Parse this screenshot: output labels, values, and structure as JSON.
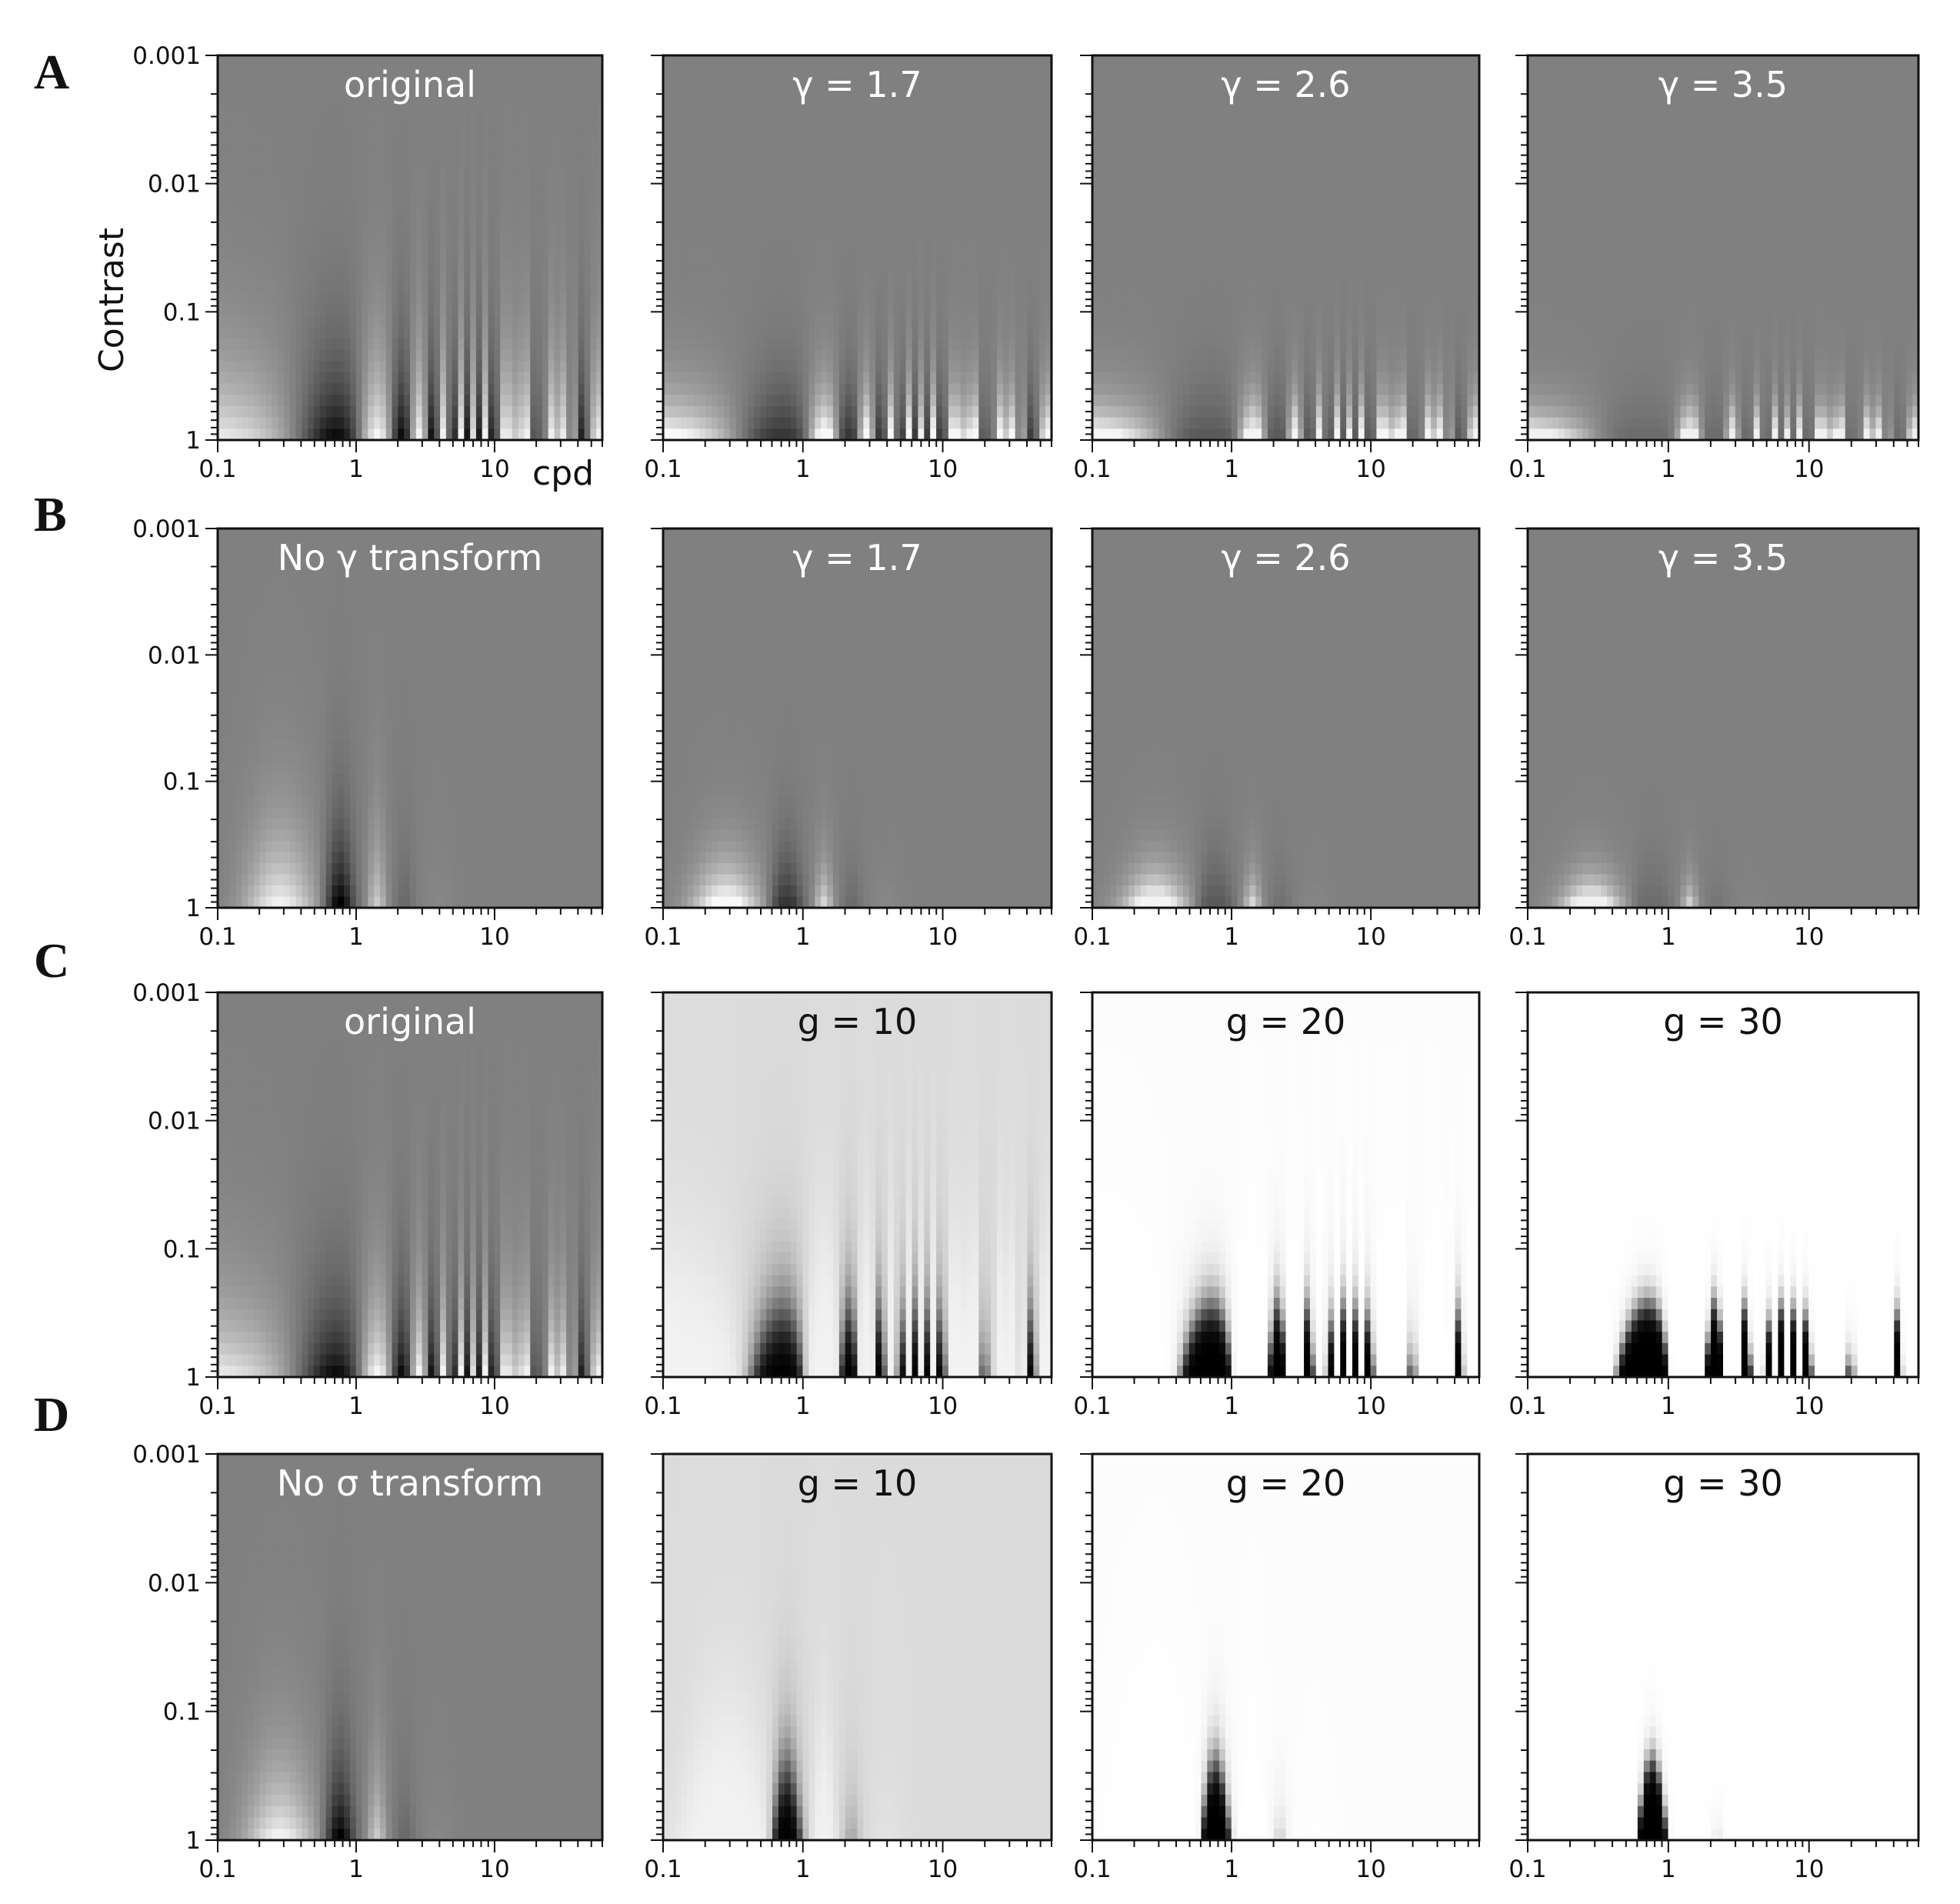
{
  "figure": {
    "row_letters": [
      "A",
      "B",
      "C",
      "D"
    ],
    "y_axis_label": "Contrast",
    "x_axis_label": "cpd"
  },
  "chart_data": [
    {
      "row": "A",
      "type": "heatmap",
      "title": "original",
      "stimulus": "grating",
      "gamma": null,
      "gain": null,
      "xscale": "log",
      "yscale": "log",
      "xlim": [
        0.1,
        60
      ],
      "ylim": [
        0.001,
        1
      ],
      "xticks": [
        "0.1",
        "1",
        "10"
      ],
      "yticks": [
        "0.001",
        "0.01",
        "0.1",
        "1"
      ],
      "xlabel": "cpd",
      "ylabel": "Contrast"
    },
    {
      "row": "A",
      "type": "heatmap",
      "title": "γ = 1.7",
      "stimulus": "grating",
      "gamma": 1.7,
      "gain": null,
      "xscale": "log",
      "yscale": "log",
      "xlim": [
        0.1,
        60
      ],
      "ylim": [
        0.001,
        1
      ],
      "xticks": [
        "0.1",
        "1",
        "10"
      ],
      "yticks": [],
      "xlabel": "",
      "ylabel": ""
    },
    {
      "row": "A",
      "type": "heatmap",
      "title": "γ = 2.6",
      "stimulus": "grating",
      "gamma": 2.6,
      "gain": null,
      "xscale": "log",
      "yscale": "log",
      "xlim": [
        0.1,
        60
      ],
      "ylim": [
        0.001,
        1
      ],
      "xticks": [
        "0.1",
        "1",
        "10"
      ],
      "yticks": [],
      "xlabel": "",
      "ylabel": ""
    },
    {
      "row": "A",
      "type": "heatmap",
      "title": "γ = 3.5",
      "stimulus": "grating",
      "gamma": 3.5,
      "gain": null,
      "xscale": "log",
      "yscale": "log",
      "xlim": [
        0.1,
        60
      ],
      "ylim": [
        0.001,
        1
      ],
      "xticks": [
        "0.1",
        "1",
        "10"
      ],
      "yticks": [],
      "xlabel": "",
      "ylabel": ""
    },
    {
      "row": "B",
      "type": "heatmap",
      "title": "No γ  transform",
      "stimulus": "blurred",
      "gamma": null,
      "gain": null,
      "xscale": "log",
      "yscale": "log",
      "xlim": [
        0.1,
        60
      ],
      "ylim": [
        0.001,
        1
      ],
      "xticks": [
        "0.1",
        "1",
        "10"
      ],
      "yticks": [
        "0.001",
        "0.01",
        "0.1",
        "1"
      ],
      "xlabel": "",
      "ylabel": ""
    },
    {
      "row": "B",
      "type": "heatmap",
      "title": "γ = 1.7",
      "stimulus": "blurred",
      "gamma": 1.7,
      "gain": null,
      "xscale": "log",
      "yscale": "log",
      "xlim": [
        0.1,
        60
      ],
      "ylim": [
        0.001,
        1
      ],
      "xticks": [
        "0.1",
        "1",
        "10"
      ],
      "yticks": [],
      "xlabel": "",
      "ylabel": ""
    },
    {
      "row": "B",
      "type": "heatmap",
      "title": "γ = 2.6",
      "stimulus": "blurred",
      "gamma": 2.6,
      "gain": null,
      "xscale": "log",
      "yscale": "log",
      "xlim": [
        0.1,
        60
      ],
      "ylim": [
        0.001,
        1
      ],
      "xticks": [
        "0.1",
        "1",
        "10"
      ],
      "yticks": [],
      "xlabel": "",
      "ylabel": ""
    },
    {
      "row": "B",
      "type": "heatmap",
      "title": "γ = 3.5",
      "stimulus": "blurred",
      "gamma": 3.5,
      "gain": null,
      "xscale": "log",
      "yscale": "log",
      "xlim": [
        0.1,
        60
      ],
      "ylim": [
        0.001,
        1
      ],
      "xticks": [
        "0.1",
        "1",
        "10"
      ],
      "yticks": [],
      "xlabel": "",
      "ylabel": ""
    },
    {
      "row": "C",
      "type": "heatmap",
      "title": "original",
      "stimulus": "grating",
      "gamma": null,
      "gain": null,
      "xscale": "log",
      "yscale": "log",
      "xlim": [
        0.1,
        60
      ],
      "ylim": [
        0.001,
        1
      ],
      "xticks": [
        "0.1",
        "1",
        "10"
      ],
      "yticks": [
        "0.001",
        "0.01",
        "0.1",
        "1"
      ],
      "xlabel": "",
      "ylabel": ""
    },
    {
      "row": "C",
      "type": "heatmap",
      "title": "g = 10",
      "stimulus": "grating",
      "gamma": null,
      "gain": 10,
      "xscale": "log",
      "yscale": "log",
      "xlim": [
        0.1,
        60
      ],
      "ylim": [
        0.001,
        1
      ],
      "xticks": [
        "0.1",
        "1",
        "10"
      ],
      "yticks": [],
      "xlabel": "",
      "ylabel": ""
    },
    {
      "row": "C",
      "type": "heatmap",
      "title": "g = 20",
      "stimulus": "grating",
      "gamma": null,
      "gain": 20,
      "xscale": "log",
      "yscale": "log",
      "xlim": [
        0.1,
        60
      ],
      "ylim": [
        0.001,
        1
      ],
      "xticks": [
        "0.1",
        "1",
        "10"
      ],
      "yticks": [],
      "xlabel": "",
      "ylabel": ""
    },
    {
      "row": "C",
      "type": "heatmap",
      "title": "g = 30",
      "stimulus": "grating",
      "gamma": null,
      "gain": 30,
      "xscale": "log",
      "yscale": "log",
      "xlim": [
        0.1,
        60
      ],
      "ylim": [
        0.001,
        1
      ],
      "xticks": [
        "0.1",
        "1",
        "10"
      ],
      "yticks": [],
      "xlabel": "",
      "ylabel": ""
    },
    {
      "row": "D",
      "type": "heatmap",
      "title": "No σ  transform",
      "stimulus": "blurred",
      "gamma": null,
      "gain": null,
      "xscale": "log",
      "yscale": "log",
      "xlim": [
        0.1,
        60
      ],
      "ylim": [
        0.001,
        1
      ],
      "xticks": [
        "0.1",
        "1",
        "10"
      ],
      "yticks": [
        "0.001",
        "0.01",
        "0.1",
        "1"
      ],
      "xlabel": "",
      "ylabel": ""
    },
    {
      "row": "D",
      "type": "heatmap",
      "title": "g = 10",
      "stimulus": "blurred",
      "gamma": null,
      "gain": 10,
      "xscale": "log",
      "yscale": "log",
      "xlim": [
        0.1,
        60
      ],
      "ylim": [
        0.001,
        1
      ],
      "xticks": [
        "0.1",
        "1",
        "10"
      ],
      "yticks": [],
      "xlabel": "",
      "ylabel": ""
    },
    {
      "row": "D",
      "type": "heatmap",
      "title": "g = 20",
      "stimulus": "blurred",
      "gamma": null,
      "gain": 20,
      "xscale": "log",
      "yscale": "log",
      "xlim": [
        0.1,
        60
      ],
      "ylim": [
        0.001,
        1
      ],
      "xticks": [
        "0.1",
        "1",
        "10"
      ],
      "yticks": [],
      "xlabel": "",
      "ylabel": ""
    },
    {
      "row": "D",
      "type": "heatmap",
      "title": "g = 30",
      "stimulus": "blurred",
      "gamma": null,
      "gain": 30,
      "xscale": "log",
      "yscale": "log",
      "xlim": [
        0.1,
        60
      ],
      "ylim": [
        0.001,
        1
      ],
      "xticks": [
        "0.1",
        "1",
        "10"
      ],
      "yticks": [],
      "xlabel": "",
      "ylabel": ""
    }
  ]
}
